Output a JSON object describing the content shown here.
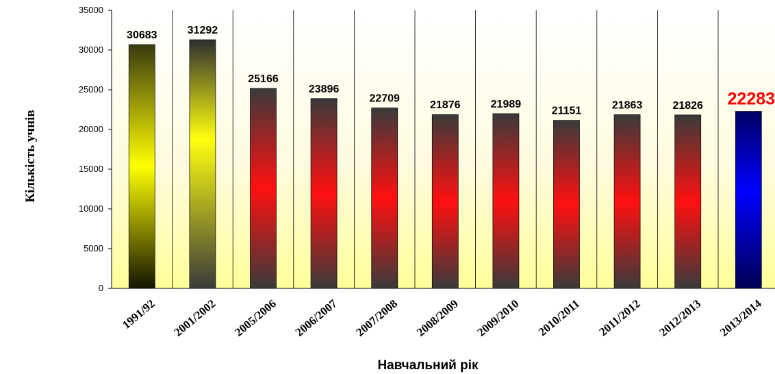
{
  "chart_data": {
    "type": "bar",
    "xlabel": "Навчальний рік",
    "ylabel": "Кількість учнів",
    "ylim": [
      0,
      35000
    ],
    "yticks": [
      0,
      5000,
      10000,
      15000,
      20000,
      25000,
      30000,
      35000
    ],
    "categories": [
      "1991/92",
      "2001/2002",
      "2005/2006",
      "2006/2007",
      "2007/2008",
      "2008/2009",
      "2009/2010",
      "2010/2011",
      "2011/2012",
      "2012/2013",
      "2013/2014"
    ],
    "values": [
      30683,
      31292,
      25166,
      23896,
      22709,
      21876,
      21989,
      21151,
      21863,
      21826,
      22283
    ],
    "grid": "vertical separators between categories",
    "legend": "none",
    "colors": {
      "yellow_bars": [
        "#1a1a00",
        "#ffff00"
      ],
      "red_bars": [
        "#3a3a3a",
        "#ff1414"
      ],
      "highlight_bar": [
        "#000066",
        "#0000ff"
      ],
      "highlight_label": "#ff0000",
      "plot_background": [
        "#ffffff",
        "#ffffa0"
      ]
    }
  }
}
